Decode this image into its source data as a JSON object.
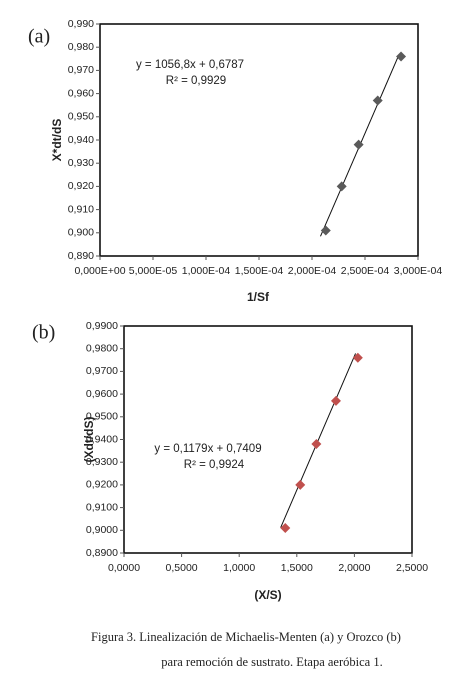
{
  "chart_data": [
    {
      "type": "scatter",
      "panel_label": "(a)",
      "y_label": "X*dt/dS",
      "x_label": "1/Sf",
      "equation": "y = 1056,8x + 0,6787",
      "r_squared": "R² = 0,9929",
      "color": "#5a5a5a",
      "frame": true,
      "x": [
        0.000213,
        0.000228,
        0.000244,
        0.000262,
        0.000284
      ],
      "values": [
        0.901,
        0.92,
        0.938,
        0.957,
        0.976
      ],
      "trendline": {
        "x": [
          0.000208,
          0.000282
        ],
        "values": [
          0.8985,
          0.9767
        ]
      },
      "xlim": [
        0,
        0.0003
      ],
      "ylim": [
        0.89,
        0.99
      ],
      "xticks": [
        {
          "value": 0,
          "label": "0,000E+00"
        },
        {
          "value": 5e-05,
          "label": "5,000E-05"
        },
        {
          "value": 0.0001,
          "label": "1,000E-04"
        },
        {
          "value": 0.00015,
          "label": "1,500E-04"
        },
        {
          "value": 0.0002,
          "label": "2,000E-04"
        },
        {
          "value": 0.00025,
          "label": "2,500E-04"
        },
        {
          "value": 0.0003,
          "label": "3,000E-04"
        }
      ],
      "yticks": [
        {
          "value": 0.89,
          "label": "0,890"
        },
        {
          "value": 0.9,
          "label": "0,900"
        },
        {
          "value": 0.91,
          "label": "0,910"
        },
        {
          "value": 0.92,
          "label": "0,920"
        },
        {
          "value": 0.93,
          "label": "0,930"
        },
        {
          "value": 0.94,
          "label": "0,940"
        },
        {
          "value": 0.95,
          "label": "0,950"
        },
        {
          "value": 0.96,
          "label": "0,960"
        },
        {
          "value": 0.97,
          "label": "0,970"
        },
        {
          "value": 0.98,
          "label": "0,980"
        },
        {
          "value": 0.99,
          "label": "0,990"
        }
      ]
    },
    {
      "type": "scatter",
      "panel_label": "(b)",
      "y_label": "(Xdt/dS)",
      "x_label": "(X/S)",
      "equation": "y = 0,1179x + 0,7409",
      "r_squared": "R² = 0,9924",
      "color": "#c0504d",
      "frame": true,
      "x": [
        1.4,
        1.53,
        1.67,
        1.84,
        2.03
      ],
      "values": [
        0.901,
        0.92,
        0.938,
        0.957,
        0.976
      ],
      "trendline": {
        "x": [
          1.36,
          2.01
        ],
        "values": [
          0.9012,
          0.9779
        ]
      },
      "xlim": [
        0,
        2.5
      ],
      "ylim": [
        0.89,
        0.99
      ],
      "xticks": [
        {
          "value": 0,
          "label": "0,0000"
        },
        {
          "value": 0.5,
          "label": "0,5000"
        },
        {
          "value": 1,
          "label": "1,0000"
        },
        {
          "value": 1.5,
          "label": "1,5000"
        },
        {
          "value": 2,
          "label": "2,0000"
        },
        {
          "value": 2.5,
          "label": "2,5000"
        }
      ],
      "yticks": [
        {
          "value": 0.89,
          "label": "0,8900"
        },
        {
          "value": 0.9,
          "label": "0,9000"
        },
        {
          "value": 0.91,
          "label": "0,9100"
        },
        {
          "value": 0.92,
          "label": "0,9200"
        },
        {
          "value": 0.93,
          "label": "0,9300"
        },
        {
          "value": 0.94,
          "label": "0,9400"
        },
        {
          "value": 0.95,
          "label": "0,9500"
        },
        {
          "value": 0.96,
          "label": "0,9600"
        },
        {
          "value": 0.97,
          "label": "0,9700"
        },
        {
          "value": 0.98,
          "label": "0,9800"
        },
        {
          "value": 0.99,
          "label": "0,9900"
        }
      ]
    }
  ],
  "caption": [
    "Figura 3. Linealización de Michaelis-Menten (a) y Orozco (b)",
    "para remoción de sustrato. Etapa aeróbica 1."
  ]
}
